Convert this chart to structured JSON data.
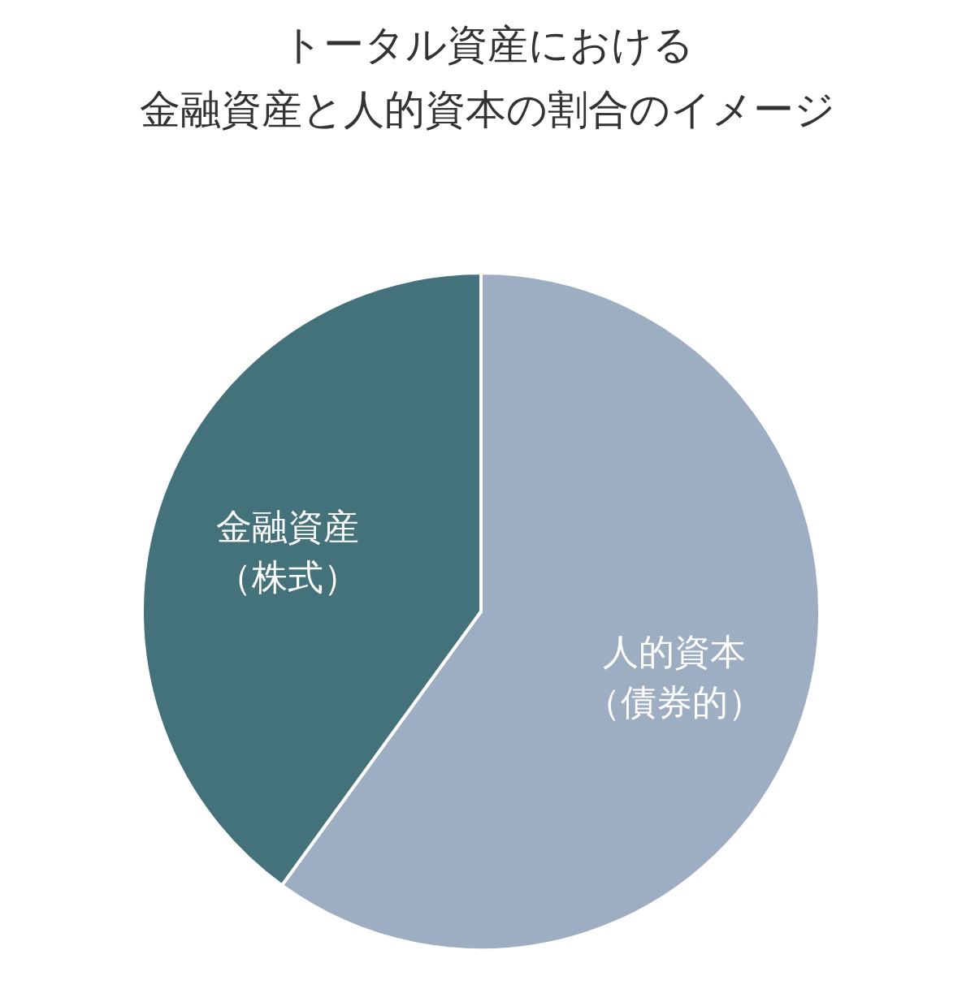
{
  "chart_data": {
    "type": "pie",
    "title": "トータル資産における",
    "subtitle": "金融資産と人的資本の割合のイメージ",
    "categories": [
      "人的資本（債券的）",
      "金融資産（株式）"
    ],
    "values": [
      60,
      40
    ],
    "colors": [
      "#9eaec2",
      "#43727a"
    ]
  }
}
